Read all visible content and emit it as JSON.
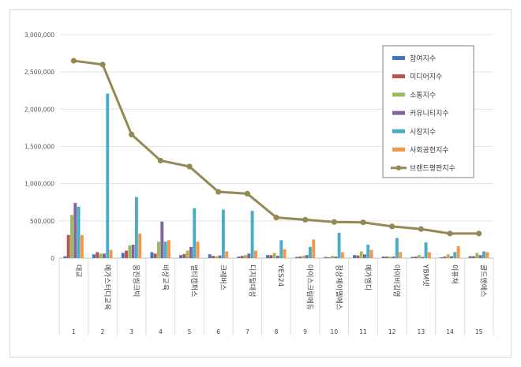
{
  "chart_data": {
    "type": "bar",
    "title": "",
    "xlabel": "",
    "ylabel": "",
    "ylim": [
      0,
      3000000
    ],
    "yticks": [
      "0",
      "500,000",
      "1,000,000",
      "1,500,000",
      "2,000,000",
      "2,500,000",
      "3,000,000"
    ],
    "grid": true,
    "legend_position": "top-right",
    "categories": [
      "대교",
      "메가스터디교육",
      "웅진씽크빅",
      "비상교육",
      "멀티캠퍼스",
      "크레버스",
      "디지털대성",
      "YES24",
      "아이스크림에듀",
      "정상제이엘에스",
      "메가엠디",
      "아이비김영",
      "YBM넷",
      "이퓨쳐",
      "골드앤에스"
    ],
    "ranks": [
      "1",
      "2",
      "3",
      "4",
      "5",
      "6",
      "7",
      "8",
      "9",
      "10",
      "11",
      "12",
      "13",
      "14",
      "15"
    ],
    "series": [
      {
        "name": "참여지수",
        "color": "#4472c4",
        "values": [
          25000,
          50000,
          70000,
          80000,
          40000,
          50000,
          20000,
          40000,
          15000,
          15000,
          40000,
          20000,
          15000,
          10000,
          25000
        ]
      },
      {
        "name": "미디어지수",
        "color": "#c0504d",
        "values": [
          310000,
          80000,
          100000,
          60000,
          55000,
          30000,
          30000,
          40000,
          20000,
          10000,
          35000,
          20000,
          20000,
          20000,
          25000
        ]
      },
      {
        "name": "소통지수",
        "color": "#9bbb59",
        "values": [
          580000,
          60000,
          170000,
          220000,
          100000,
          25000,
          40000,
          70000,
          30000,
          30000,
          90000,
          20000,
          40000,
          50000,
          70000
        ]
      },
      {
        "name": "커뮤니티지수",
        "color": "#8064a2",
        "values": [
          740000,
          60000,
          180000,
          490000,
          150000,
          35000,
          60000,
          30000,
          40000,
          20000,
          50000,
          20000,
          15000,
          25000,
          40000
        ]
      },
      {
        "name": "시장지수",
        "color": "#4bacc6",
        "values": [
          690000,
          2210000,
          820000,
          220000,
          670000,
          650000,
          635000,
          240000,
          150000,
          340000,
          180000,
          270000,
          210000,
          80000,
          90000
        ]
      },
      {
        "name": "사회공헌지수",
        "color": "#f79646",
        "values": [
          310000,
          110000,
          330000,
          240000,
          220000,
          90000,
          100000,
          120000,
          250000,
          80000,
          110000,
          80000,
          80000,
          160000,
          80000
        ]
      }
    ],
    "line": {
      "name": "브랜드평판지수",
      "color": "#938953",
      "values": [
        2650000,
        2600000,
        1660000,
        1310000,
        1230000,
        890000,
        865000,
        545000,
        515000,
        485000,
        480000,
        425000,
        390000,
        330000,
        330000
      ]
    }
  }
}
